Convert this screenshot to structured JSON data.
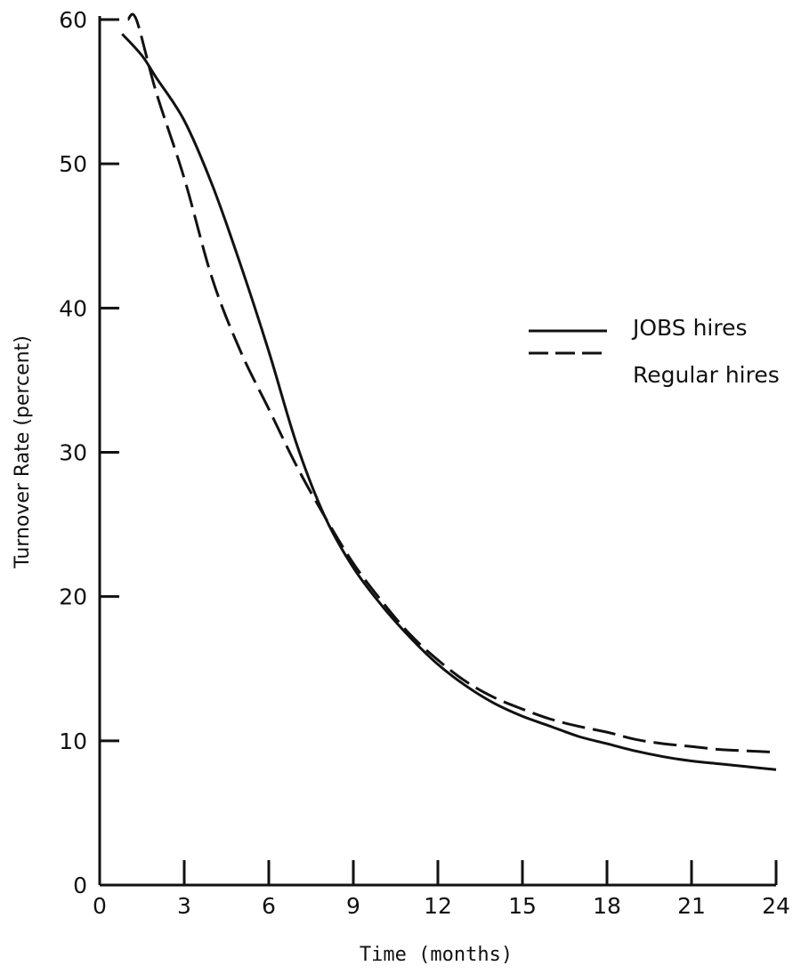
{
  "chart_data": {
    "type": "line",
    "title": "",
    "xlabel": "Time (months)",
    "ylabel": "Turnover Rate (percent)",
    "xlim": [
      0,
      24
    ],
    "ylim": [
      0,
      60
    ],
    "xticks": [
      0,
      3,
      6,
      9,
      12,
      15,
      18,
      21,
      24
    ],
    "yticks": [
      0,
      10,
      20,
      30,
      40,
      50,
      60
    ],
    "xtick_labels": [
      "0",
      "3",
      "6",
      "9",
      "12",
      "15",
      "18",
      "21",
      "24"
    ],
    "ytick_labels": [
      "0",
      "10",
      "20",
      "30",
      "40",
      "50",
      "60"
    ],
    "grid": false,
    "legend_position": "right",
    "series": [
      {
        "name": "JOBS hires",
        "style": "solid",
        "x": [
          0.8,
          1.5,
          2,
          3,
          4,
          5,
          6,
          7,
          8,
          9,
          10,
          11,
          12,
          13,
          14,
          15,
          16,
          17,
          18,
          19,
          20,
          21,
          22,
          23,
          24
        ],
        "y": [
          59,
          57.5,
          56,
          53,
          48.5,
          43,
          37,
          30.5,
          25.5,
          22,
          19.4,
          17.2,
          15.3,
          13.8,
          12.6,
          11.7,
          11,
          10.3,
          9.8,
          9.3,
          8.9,
          8.6,
          8.4,
          8.2,
          8
        ]
      },
      {
        "name": "Regular hires",
        "style": "dashed",
        "x": [
          1,
          1.3,
          2,
          3,
          4,
          5,
          6,
          7,
          8,
          9,
          10,
          11,
          12,
          13,
          14,
          15,
          16,
          17,
          18,
          19,
          20,
          21,
          22,
          23,
          24
        ],
        "y": [
          60,
          60,
          55,
          49,
          42,
          37,
          33,
          29,
          25.5,
          22.3,
          19.7,
          17.4,
          15.6,
          14.1,
          13,
          12.2,
          11.5,
          11,
          10.6,
          10.1,
          9.8,
          9.6,
          9.4,
          9.3,
          9.2
        ]
      }
    ]
  }
}
